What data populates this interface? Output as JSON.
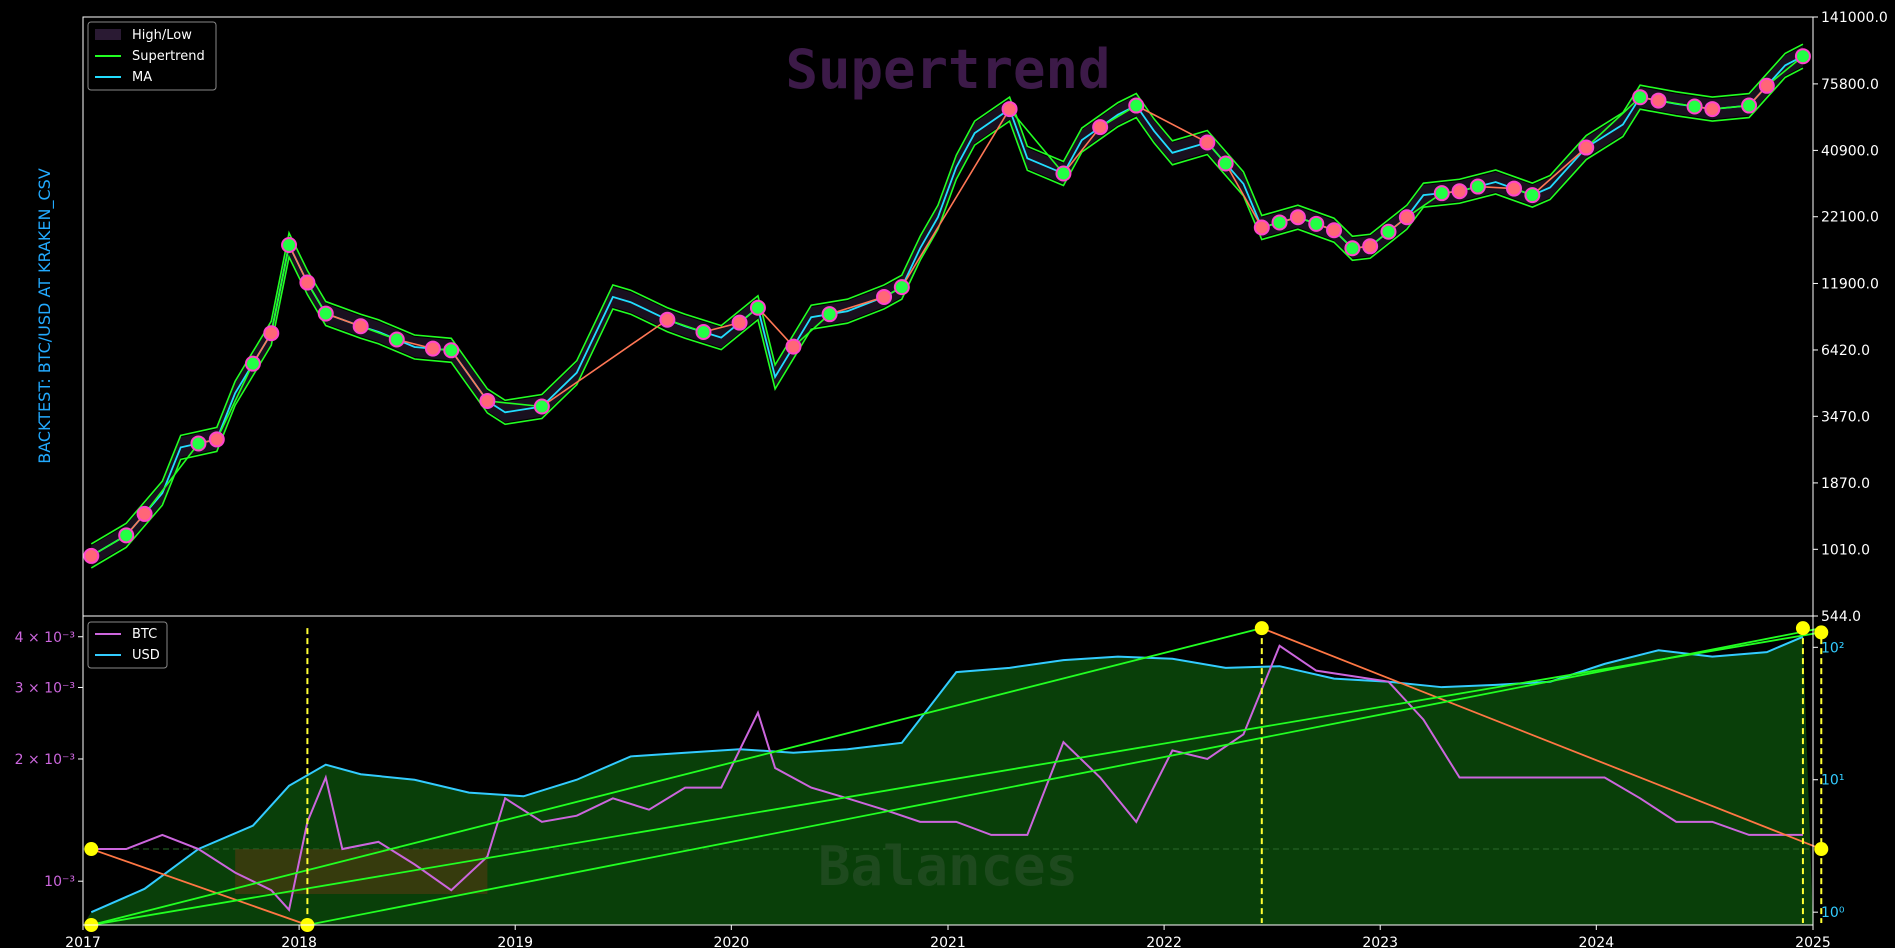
{
  "chart_data": [
    {
      "type": "line",
      "watermark": "Supertrend",
      "ylabel": "BACKTEST:  BTC/USD AT KRAKEN_CSV",
      "yscale": "log",
      "ylim": [
        544,
        141000
      ],
      "xlim": [
        "2017-01-01",
        "2025-01-01"
      ],
      "x_ticks": [
        "2017",
        "2018",
        "2019",
        "2020",
        "2021",
        "2022",
        "2023",
        "2024",
        "2025"
      ],
      "y_ticks": [
        "544.0",
        "1010.0",
        "1870.0",
        "3470.0",
        "6420.0",
        "11900.0",
        "22100.0",
        "40900.0",
        "75800.0",
        "141000.0"
      ],
      "y_tick_values": [
        544,
        1010,
        1870,
        3470,
        6420,
        11900,
        22100,
        40900,
        75800,
        141000
      ],
      "legend": {
        "position": "top-left",
        "entries": [
          "High/Low",
          "Supertrend",
          "MA"
        ]
      },
      "series": [
        {
          "name": "High/Low",
          "color": "#2a1a33"
        },
        {
          "name": "Supertrend",
          "color": "#22ff22"
        },
        {
          "name": "MA",
          "color": "#22ddff"
        }
      ],
      "x": [
        "2017-01",
        "2017-03",
        "2017-05",
        "2017-06",
        "2017-08",
        "2017-09",
        "2017-11",
        "2017-12",
        "2018-01",
        "2018-02",
        "2018-04",
        "2018-05",
        "2018-07",
        "2018-09",
        "2018-11",
        "2018-12",
        "2019-02",
        "2019-04",
        "2019-06",
        "2019-07",
        "2019-09",
        "2019-10",
        "2019-12",
        "2020-02",
        "2020-03",
        "2020-05",
        "2020-07",
        "2020-09",
        "2020-10",
        "2020-11",
        "2020-12",
        "2021-01",
        "2021-02",
        "2021-04",
        "2021-05",
        "2021-07",
        "2021-08",
        "2021-10",
        "2021-11",
        "2021-12",
        "2022-01",
        "2022-03",
        "2022-05",
        "2022-06",
        "2022-08",
        "2022-10",
        "2022-11",
        "2022-12",
        "2023-02",
        "2023-03",
        "2023-05",
        "2023-07",
        "2023-09",
        "2023-10",
        "2023-12",
        "2024-02",
        "2024-03",
        "2024-05",
        "2024-07",
        "2024-09",
        "2024-11",
        "2024-12"
      ],
      "values": [
        950,
        1150,
        1700,
        2600,
        2800,
        4300,
        7500,
        17000,
        12000,
        9000,
        8000,
        7600,
        6600,
        6400,
        4000,
        3600,
        3800,
        5200,
        10500,
        10000,
        8500,
        8000,
        7200,
        9500,
        5000,
        8700,
        9200,
        10500,
        11500,
        16500,
        22000,
        35000,
        48000,
        60000,
        38000,
        33000,
        45000,
        57000,
        62000,
        49000,
        40000,
        44000,
        30000,
        20000,
        22000,
        19500,
        16500,
        16800,
        22000,
        27000,
        28000,
        30500,
        27000,
        29000,
        42000,
        52000,
        67000,
        63000,
        60000,
        62000,
        90000,
        98000
      ],
      "trade_markers": [
        "2017-01",
        "2017-03",
        "2017-04",
        "2017-07",
        "2017-08",
        "2017-10",
        "2017-11",
        "2017-12",
        "2018-01",
        "2018-02",
        "2018-04",
        "2018-06",
        "2018-08",
        "2018-09",
        "2018-11",
        "2019-02",
        "2019-09",
        "2019-11",
        "2020-01",
        "2020-02",
        "2020-04",
        "2020-06",
        "2020-09",
        "2020-10",
        "2021-04",
        "2021-07",
        "2021-09",
        "2021-11",
        "2022-03",
        "2022-04",
        "2022-06",
        "2022-07",
        "2022-08",
        "2022-09",
        "2022-10",
        "2022-11",
        "2022-12",
        "2023-01",
        "2023-02",
        "2023-04",
        "2023-05",
        "2023-06",
        "2023-08",
        "2023-09",
        "2023-12",
        "2024-03",
        "2024-04",
        "2024-06",
        "2024-07",
        "2024-09",
        "2024-10",
        "2024-12"
      ]
    },
    {
      "type": "line",
      "watermark": "Balances",
      "yscale": "log",
      "left_axis": {
        "ylim": [
          0.00078,
          0.0043
        ],
        "ticks": [
          "4 × 10⁻³",
          "3 × 10⁻³",
          "2 × 10⁻³",
          "10⁻³"
        ],
        "tick_values": [
          0.004,
          0.003,
          0.002,
          0.001
        ],
        "color": "#cc66dd"
      },
      "right_axis": {
        "ylim": [
          0.8,
          150
        ],
        "ticks": [
          "10²",
          "10¹",
          "10⁰"
        ],
        "tick_values": [
          100,
          10,
          1
        ],
        "color": "#33ccff"
      },
      "x_ticks": [
        "2017",
        "2018",
        "2019",
        "2020",
        "2021",
        "2022",
        "2023",
        "2024",
        "2025"
      ],
      "legend": {
        "position": "top-left",
        "entries": [
          "BTC",
          "USD"
        ]
      },
      "series": [
        {
          "name": "BTC",
          "color": "#cc66dd",
          "axis": "left",
          "x": [
            "2017-01",
            "2017-03",
            "2017-05",
            "2017-07",
            "2017-09",
            "2017-11",
            "2017-12",
            "2018-01",
            "2018-02",
            "2018-03",
            "2018-05",
            "2018-07",
            "2018-09",
            "2018-11",
            "2018-12",
            "2019-02",
            "2019-04",
            "2019-06",
            "2019-08",
            "2019-10",
            "2019-12",
            "2020-02",
            "2020-03",
            "2020-05",
            "2020-07",
            "2020-09",
            "2020-11",
            "2021-01",
            "2021-03",
            "2021-05",
            "2021-07",
            "2021-09",
            "2021-11",
            "2022-01",
            "2022-03",
            "2022-05",
            "2022-07",
            "2022-09",
            "2022-11",
            "2023-01",
            "2023-03",
            "2023-05",
            "2023-07",
            "2023-09",
            "2023-11",
            "2024-01",
            "2024-03",
            "2024-05",
            "2024-07",
            "2024-09",
            "2024-11",
            "2024-12"
          ],
          "values": [
            0.0012,
            0.0012,
            0.0013,
            0.0012,
            0.00105,
            0.00095,
            0.00085,
            0.0014,
            0.0018,
            0.0012,
            0.00125,
            0.0011,
            0.00095,
            0.00115,
            0.0016,
            0.0014,
            0.00145,
            0.0016,
            0.0015,
            0.0017,
            0.0017,
            0.0026,
            0.0019,
            0.0017,
            0.0016,
            0.0015,
            0.0014,
            0.0014,
            0.0013,
            0.0013,
            0.0022,
            0.0018,
            0.0014,
            0.0021,
            0.002,
            0.0023,
            0.0038,
            0.0033,
            0.0032,
            0.0031,
            0.0025,
            0.0018,
            0.0018,
            0.0018,
            0.0018,
            0.0018,
            0.0016,
            0.0014,
            0.0014,
            0.0013,
            0.0013,
            0.0013
          ]
        },
        {
          "name": "USD",
          "color": "#33ccff",
          "axis": "right",
          "x": [
            "2017-01",
            "2017-04",
            "2017-07",
            "2017-10",
            "2017-12",
            "2018-02",
            "2018-04",
            "2018-07",
            "2018-10",
            "2019-01",
            "2019-04",
            "2019-07",
            "2019-10",
            "2020-01",
            "2020-04",
            "2020-07",
            "2020-10",
            "2021-01",
            "2021-04",
            "2021-07",
            "2021-10",
            "2022-01",
            "2022-04",
            "2022-07",
            "2022-10",
            "2023-01",
            "2023-04",
            "2023-07",
            "2023-10",
            "2024-01",
            "2024-04",
            "2024-07",
            "2024-10",
            "2024-12"
          ],
          "values": [
            1,
            1.5,
            3,
            4.5,
            9,
            13,
            11,
            10,
            8,
            7.5,
            10,
            15,
            16,
            17,
            16,
            17,
            19,
            65,
            70,
            80,
            85,
            82,
            70,
            72,
            58,
            55,
            50,
            52,
            55,
            75,
            95,
            85,
            92,
            120
          ]
        }
      ],
      "trend_lines": [
        {
          "color": "#ff7744",
          "from": [
            "2017-01",
            0.0012
          ],
          "to": [
            "2018-01",
            0.00078
          ]
        },
        {
          "color": "#ff7744",
          "from": [
            "2022-06",
            0.0042
          ],
          "to": [
            "2025-01",
            0.0012
          ]
        },
        {
          "color": "#22ff22",
          "from": [
            "2017-01",
            0.00078
          ],
          "to": [
            "2022-06",
            0.0042
          ]
        },
        {
          "color": "#22ff22",
          "from": [
            "2018-01",
            0.00078
          ],
          "to": [
            "2025-01",
            0.0042
          ]
        },
        {
          "color": "#22ff22",
          "from": [
            "2017-01",
            0.00078
          ],
          "to": [
            "2025-01",
            0.0041
          ]
        }
      ],
      "markers": [
        {
          "date": "2017-01",
          "value": 0.0012
        },
        {
          "date": "2017-01",
          "value": 0.00078
        },
        {
          "date": "2018-01",
          "value": 0.00078
        },
        {
          "date": "2022-06",
          "value": 0.0042
        },
        {
          "date": "2024-12",
          "value": 0.0042
        },
        {
          "date": "2025-01",
          "value": 0.0041
        },
        {
          "date": "2025-01",
          "value": 0.0012
        }
      ],
      "dashed_lines": [
        "2018-01",
        "2022-06",
        "2024-12",
        "2025-01"
      ]
    }
  ]
}
